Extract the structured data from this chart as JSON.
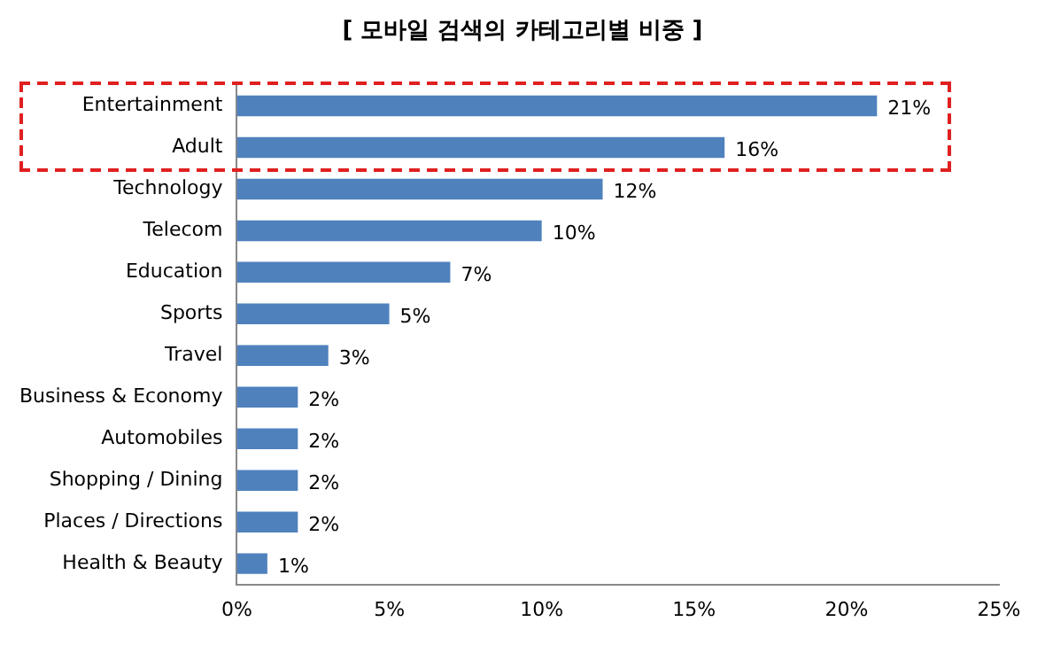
{
  "chart_data": {
    "type": "bar",
    "orientation": "horizontal",
    "title": "[ 모바일 검색의 카테고리별 비중 ]",
    "categories": [
      "Entertainment",
      "Adult",
      "Technology",
      "Telecom",
      "Education",
      "Sports",
      "Travel",
      "Business & Economy",
      "Automobiles",
      "Shopping / Dining",
      "Places / Directions",
      "Health & Beauty"
    ],
    "values": [
      21,
      16,
      12,
      10,
      7,
      5,
      3,
      2,
      2,
      2,
      2,
      1
    ],
    "value_labels": [
      "21%",
      "16%",
      "12%",
      "10%",
      "7%",
      "5%",
      "3%",
      "2%",
      "2%",
      "2%",
      "2%",
      "1%"
    ],
    "color": "#4f81bd",
    "xlim": [
      0,
      25
    ],
    "xticks": [
      {
        "value": 0,
        "label": "0%"
      },
      {
        "value": 5,
        "label": "5%"
      },
      {
        "value": 10,
        "label": "10%"
      },
      {
        "value": 15,
        "label": "15%"
      },
      {
        "value": 20,
        "label": "20%"
      },
      {
        "value": 25,
        "label": "25%"
      }
    ],
    "grid": false,
    "legend": false
  }
}
